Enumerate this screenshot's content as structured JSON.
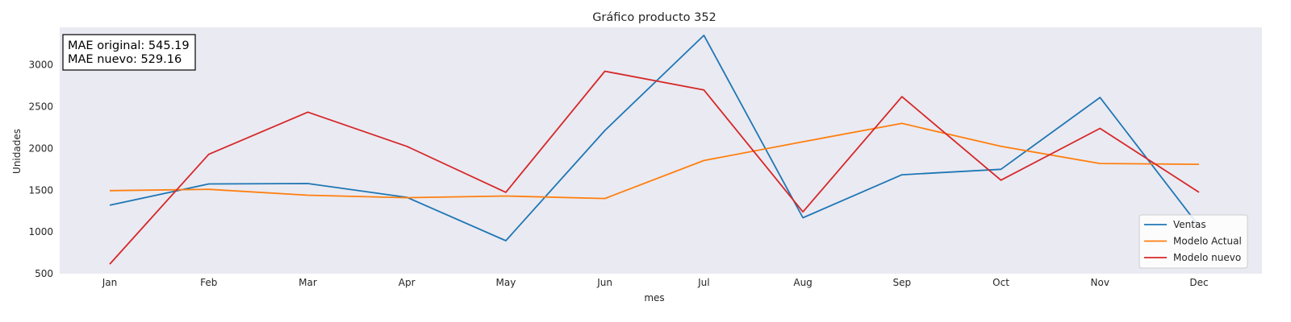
{
  "chart_data": {
    "type": "line",
    "title": "Gráfico producto 352",
    "xlabel": "mes",
    "ylabel": "Unidades",
    "categories": [
      "Jan",
      "Feb",
      "Mar",
      "Apr",
      "May",
      "Jun",
      "Jul",
      "Aug",
      "Sep",
      "Oct",
      "Nov",
      "Dec"
    ],
    "ylim": [
      500,
      3450
    ],
    "yticks": [
      500,
      1000,
      1500,
      2000,
      2500,
      3000
    ],
    "grid": false,
    "legend_position": "lower-right",
    "background_color": "#eaeaf2",
    "series": [
      {
        "name": "Ventas",
        "color": "#1f77b4",
        "values": [
          1320,
          1575,
          1580,
          1415,
          895,
          2215,
          3355,
          1170,
          1685,
          1750,
          2610,
          1070
        ]
      },
      {
        "name": "Modelo Actual",
        "color": "#ff7f0e",
        "values": [
          1495,
          1510,
          1440,
          1410,
          1430,
          1400,
          1855,
          2080,
          2300,
          2025,
          1820,
          1810
        ]
      },
      {
        "name": "Modelo nuevo",
        "color": "#d62728",
        "values": [
          615,
          1930,
          2435,
          2025,
          1475,
          2925,
          2700,
          1240,
          2620,
          1620,
          2240,
          1475
        ]
      }
    ],
    "annotations": [
      "MAE original: 545.19",
      "MAE nuevo: 529.16"
    ]
  }
}
